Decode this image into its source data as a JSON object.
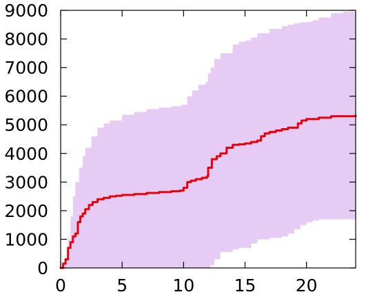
{
  "chart_data": {
    "type": "area",
    "title": "",
    "xlabel": "",
    "ylabel": "",
    "xlim": [
      0,
      24
    ],
    "ylim": [
      0,
      9000
    ],
    "x_ticks": [
      0,
      5,
      10,
      15,
      20
    ],
    "x_tick_labels": [
      "0",
      "5",
      "10",
      "15",
      "20"
    ],
    "y_ticks": [
      0,
      1000,
      2000,
      3000,
      4000,
      5000,
      6000,
      7000,
      8000,
      9000
    ],
    "y_tick_labels": [
      "0",
      "1000",
      "2000",
      "3000",
      "4000",
      "5000",
      "6000",
      "7000",
      "8000",
      "9000"
    ],
    "grid": false,
    "colors": {
      "band": "#e6ccf5",
      "line": "#e8000b"
    },
    "series": [
      {
        "kind": "band",
        "x": [
          0,
          0.3,
          0.6,
          0.8,
          1.0,
          1.2,
          1.5,
          1.8,
          2.0,
          2.5,
          3.0,
          3.5,
          4.0,
          5.0,
          6.0,
          7.0,
          8.0,
          9.0,
          9.8,
          10.3,
          10.7,
          11.2,
          11.8,
          12.0,
          12.2,
          12.5,
          13.0,
          14.0,
          14.5,
          15.0,
          15.5,
          16.0,
          17.0,
          18.0,
          18.5,
          19.0,
          19.5,
          20.0,
          20.5,
          21.0,
          22.0,
          23.0,
          24.0
        ],
        "upper": [
          0,
          300,
          1000,
          1800,
          2500,
          3000,
          3500,
          3900,
          4200,
          4600,
          4900,
          5050,
          5150,
          5350,
          5450,
          5550,
          5600,
          5650,
          5700,
          6000,
          6200,
          6400,
          6500,
          6800,
          7000,
          7300,
          7500,
          7800,
          7900,
          7950,
          8050,
          8200,
          8350,
          8450,
          8500,
          8550,
          8580,
          8600,
          8650,
          8750,
          8900,
          8950,
          8950
        ],
        "lower": [
          0,
          0,
          0,
          0,
          0,
          0,
          0,
          0,
          0,
          0,
          0,
          0,
          0,
          0,
          0,
          0,
          0,
          0,
          0,
          0,
          0,
          0,
          0,
          0,
          100,
          300,
          550,
          650,
          700,
          700,
          850,
          1000,
          1050,
          1100,
          1200,
          1350,
          1500,
          1600,
          1650,
          1700,
          1700,
          1700,
          1700
        ]
      },
      {
        "kind": "line",
        "x": [
          0,
          0.2,
          0.4,
          0.6,
          0.8,
          1.0,
          1.2,
          1.4,
          1.6,
          1.8,
          2.0,
          2.3,
          2.6,
          3.0,
          3.5,
          4.0,
          4.5,
          5.0,
          6.0,
          7.0,
          8.0,
          9.0,
          9.7,
          10.0,
          10.3,
          10.6,
          11.0,
          11.5,
          11.9,
          12.0,
          12.3,
          12.7,
          13.0,
          13.5,
          14.0,
          14.5,
          15.0,
          15.5,
          16.0,
          16.3,
          16.6,
          17.0,
          17.5,
          18.0,
          18.5,
          19.0,
          19.3,
          19.6,
          20.0,
          21.0,
          22.0,
          23.0,
          24.0
        ],
        "y": [
          0,
          150,
          300,
          700,
          900,
          1100,
          1200,
          1600,
          1800,
          1900,
          2050,
          2200,
          2300,
          2400,
          2450,
          2500,
          2520,
          2550,
          2580,
          2620,
          2650,
          2680,
          2700,
          2800,
          3000,
          3050,
          3100,
          3150,
          3200,
          3500,
          3800,
          3900,
          4000,
          4200,
          4300,
          4320,
          4350,
          4400,
          4450,
          4600,
          4700,
          4750,
          4800,
          4850,
          4900,
          4900,
          5050,
          5150,
          5200,
          5250,
          5300,
          5300,
          5320
        ]
      }
    ]
  }
}
